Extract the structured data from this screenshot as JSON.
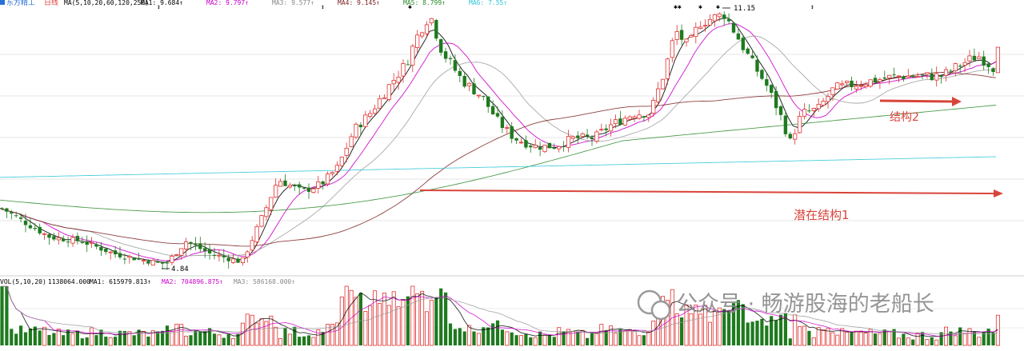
{
  "header": {
    "stock": "东方精工",
    "period": "日线",
    "ma_label": "MA(5,10,20,60,120,250)",
    "ma_values": [
      {
        "name": "MA1",
        "value": "9.684",
        "color": "#000000"
      },
      {
        "name": "MA2",
        "value": "9.797",
        "color": "#cc00cc"
      },
      {
        "name": "MA3",
        "value": "9.577",
        "color": "#888888"
      },
      {
        "name": "MA4",
        "value": "9.145",
        "color": "#7a1f1f"
      },
      {
        "name": "MA5",
        "value": "8.799",
        "color": "#2e8b2e"
      },
      {
        "name": "MA6",
        "value": "7.55",
        "color": "#2ec7d8"
      }
    ]
  },
  "annotations": {
    "high_label": "11.15",
    "low_label": "4.84",
    "structure1": "潜在结构1",
    "structure2": "结构2"
  },
  "volume_header": {
    "label": "VOL(5,10,20)",
    "value": "1138064.000",
    "ma_values": [
      {
        "name": "MA1",
        "value": "615979.813",
        "color": "#000000"
      },
      {
        "name": "MA2",
        "value": "704896.875",
        "color": "#cc00cc"
      },
      {
        "name": "MA3",
        "value": "586168.000",
        "color": "#888888"
      }
    ]
  },
  "watermark": "公众号 · 畅游股海的老船长",
  "colors": {
    "up": "#e03030",
    "down": "#1e7a1e",
    "arrow": "#d9443a"
  },
  "chart_data": {
    "type": "candlestick",
    "price_high": 11.15,
    "price_low": 4.84,
    "price_last": 10.2,
    "ma_last": {
      "MA5": 9.684,
      "MA10": 9.797,
      "MA20": 9.577,
      "MA60": 9.145,
      "MA120": 8.799,
      "MA250": 7.55
    },
    "volume_last": 1138064,
    "volume_ma_last": {
      "MA5": 615979.813,
      "MA10": 704896.875,
      "MA20": 586168
    }
  }
}
